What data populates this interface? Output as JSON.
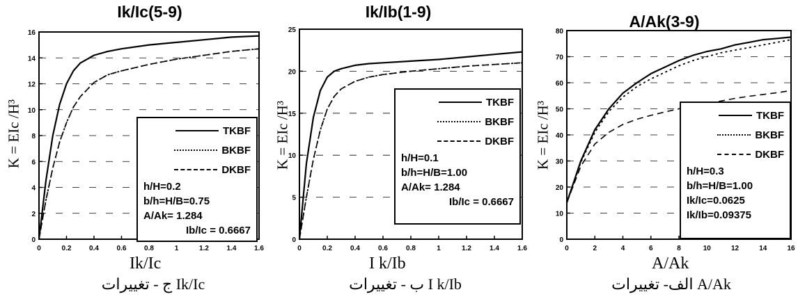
{
  "charts": [
    {
      "title": "Ik/Ic(5-9)",
      "ylabel": "K = EIc /H³",
      "xlabel": "Ik/Ic",
      "caption": "ج - تغییرات Ik/Ic",
      "legend": [
        "TKBF",
        "BKBF",
        "DKBF"
      ],
      "params": [
        "h/H=0.2",
        "b/h=H/B=0.75",
        "A/Ak= 1.284",
        "Ib/Ic = 0.6667"
      ]
    },
    {
      "title": "Ik/Ib(1-9)",
      "ylabel": "K = EIc /H³",
      "xlabel": "I k/Ib",
      "caption": "ب - تغییرات I k/Ib",
      "legend": [
        "TKBF",
        "BKBF",
        "DKBF"
      ],
      "params": [
        "h/H=0.1",
        "b/h=H/B=1.00",
        "A/Ak= 1.284",
        "Ib/Ic = 0.6667"
      ]
    },
    {
      "title": "A/Ak(3-9)",
      "ylabel": "K = EIc /H³",
      "xlabel": "A/Ak",
      "caption": "الف- تغییرات A/Ak",
      "legend": [
        "TKBF",
        "BKBF",
        "DKBF"
      ],
      "params": [
        "h/H=0.3",
        "b/h=H/B=1.00",
        "Ik/Ic=0.0625",
        "Ik/Ib=0.09375"
      ]
    }
  ],
  "chart_data": [
    {
      "type": "line",
      "title": "Ik/Ic(5-9)",
      "xlabel": "Ik/Ic",
      "ylabel": "K = EIc /H³",
      "xlim": [
        0,
        1.6
      ],
      "ylim": [
        0,
        16
      ],
      "xticks": [
        0,
        0.2,
        0.4,
        0.6,
        0.8,
        1.0,
        1.2,
        1.4,
        1.6
      ],
      "xtick_labels": [
        "0",
        "0.2",
        "0.4",
        "0.6",
        "0.8",
        "1",
        "1.2",
        "1.4",
        "1.6"
      ],
      "yticks": [
        0,
        2,
        4,
        6,
        8,
        10,
        12,
        14,
        16
      ],
      "ytick_labels": [
        "0",
        "2",
        "4",
        "6",
        "8",
        "10",
        "12",
        "14",
        "16"
      ],
      "series": [
        {
          "name": "TKBF",
          "x": [
            0,
            0.05,
            0.1,
            0.15,
            0.2,
            0.25,
            0.3,
            0.4,
            0.5,
            0.6,
            0.8,
            1.0,
            1.2,
            1.4,
            1.6
          ],
          "values": [
            0,
            4.5,
            8.0,
            10.4,
            12.0,
            13.0,
            13.6,
            14.2,
            14.5,
            14.7,
            15.0,
            15.2,
            15.4,
            15.6,
            15.7
          ]
        },
        {
          "name": "BKBF",
          "x": [
            0,
            0.05,
            0.1,
            0.15,
            0.2,
            0.25,
            0.3,
            0.4,
            0.5,
            0.6,
            0.8,
            1.0,
            1.2,
            1.4,
            1.6
          ],
          "values": [
            0,
            3.0,
            5.5,
            7.5,
            9.0,
            10.2,
            11.0,
            12.1,
            12.7,
            13.0,
            13.5,
            13.9,
            14.2,
            14.5,
            14.7
          ]
        },
        {
          "name": "DKBF",
          "x": [
            0,
            0.05,
            0.1,
            0.15,
            0.2,
            0.25,
            0.3,
            0.4,
            0.5,
            0.6,
            0.8,
            1.0,
            1.2,
            1.4,
            1.6
          ],
          "values": [
            0,
            3.0,
            5.5,
            7.5,
            9.0,
            10.2,
            11.0,
            12.1,
            12.7,
            13.0,
            13.5,
            13.9,
            14.2,
            14.5,
            14.7
          ]
        }
      ]
    },
    {
      "type": "line",
      "title": "Ik/Ib(1-9)",
      "xlabel": "I k/Ib",
      "ylabel": "K = EIc /H³",
      "xlim": [
        0,
        1.6
      ],
      "ylim": [
        0,
        25
      ],
      "xticks": [
        0,
        0.2,
        0.4,
        0.6,
        0.8,
        1.0,
        1.2,
        1.4,
        1.6
      ],
      "xtick_labels": [
        "0",
        "0.2",
        "0.4",
        "0.6",
        "0.8",
        "1",
        "1.2",
        "1.4",
        "1.6"
      ],
      "yticks": [
        0,
        5,
        10,
        15,
        20,
        25
      ],
      "ytick_labels": [
        "0",
        "5",
        "10",
        "15",
        "20",
        "25"
      ],
      "series": [
        {
          "name": "TKBF",
          "x": [
            0,
            0.05,
            0.1,
            0.15,
            0.2,
            0.25,
            0.3,
            0.4,
            0.5,
            0.6,
            0.8,
            1.0,
            1.2,
            1.4,
            1.6
          ],
          "values": [
            0,
            9.0,
            14.5,
            17.7,
            19.3,
            20.0,
            20.3,
            20.7,
            20.9,
            21.0,
            21.2,
            21.4,
            21.7,
            22.0,
            22.3
          ]
        },
        {
          "name": "BKBF",
          "x": [
            0,
            0.05,
            0.1,
            0.15,
            0.2,
            0.25,
            0.3,
            0.4,
            0.5,
            0.6,
            0.8,
            1.0,
            1.2,
            1.4,
            1.6
          ],
          "values": [
            0,
            5.0,
            9.5,
            13.0,
            15.5,
            17.0,
            17.9,
            18.8,
            19.3,
            19.6,
            20.0,
            20.3,
            20.6,
            20.8,
            21.0
          ]
        },
        {
          "name": "DKBF",
          "x": [
            0,
            0.05,
            0.1,
            0.15,
            0.2,
            0.25,
            0.3,
            0.4,
            0.5,
            0.6,
            0.8,
            1.0,
            1.2,
            1.4,
            1.6
          ],
          "values": [
            0,
            5.0,
            9.5,
            13.0,
            15.5,
            17.0,
            17.9,
            18.8,
            19.3,
            19.6,
            20.0,
            20.3,
            20.6,
            20.8,
            21.0
          ]
        }
      ]
    },
    {
      "type": "line",
      "title": "A/Ak(3-9)",
      "xlabel": "A/Ak",
      "ylabel": "K = EIc /H³",
      "xlim": [
        0,
        16
      ],
      "ylim": [
        0,
        80
      ],
      "xticks": [
        0,
        2,
        4,
        6,
        8,
        10,
        12,
        14,
        16
      ],
      "xtick_labels": [
        "0",
        "2",
        "4",
        "6",
        "8",
        "10",
        "12",
        "14",
        "16"
      ],
      "yticks": [
        0,
        10,
        20,
        30,
        40,
        50,
        60,
        70,
        80
      ],
      "ytick_labels": [
        "0",
        "10",
        "20",
        "30",
        "40",
        "50",
        "60",
        "70",
        "80"
      ],
      "series": [
        {
          "name": "TKBF",
          "x": [
            0,
            1,
            2,
            3,
            4,
            5,
            6,
            7,
            8,
            9,
            10,
            11,
            12,
            13,
            14,
            15,
            16
          ],
          "values": [
            14,
            30,
            42,
            50,
            56,
            60,
            63.5,
            66,
            68.5,
            70.5,
            72,
            73,
            74.5,
            75.5,
            76.5,
            77,
            77.5
          ]
        },
        {
          "name": "BKBF",
          "x": [
            0,
            1,
            2,
            3,
            4,
            5,
            6,
            7,
            8,
            9,
            10,
            11,
            12,
            13,
            14,
            15,
            16
          ],
          "values": [
            14,
            29.5,
            41,
            49,
            54.5,
            58.5,
            61.5,
            64,
            66.5,
            68.5,
            70,
            71.5,
            72.5,
            73.5,
            74.5,
            75.5,
            76.5
          ]
        },
        {
          "name": "DKBF",
          "x": [
            0,
            1,
            2,
            3,
            4,
            5,
            6,
            7,
            8,
            9,
            10,
            11,
            12,
            13,
            14,
            15,
            16
          ],
          "values": [
            14,
            28,
            36.5,
            41,
            44,
            46,
            47.5,
            48.8,
            50,
            51,
            52,
            53,
            54,
            54.8,
            55.5,
            56.2,
            57
          ]
        }
      ]
    }
  ]
}
